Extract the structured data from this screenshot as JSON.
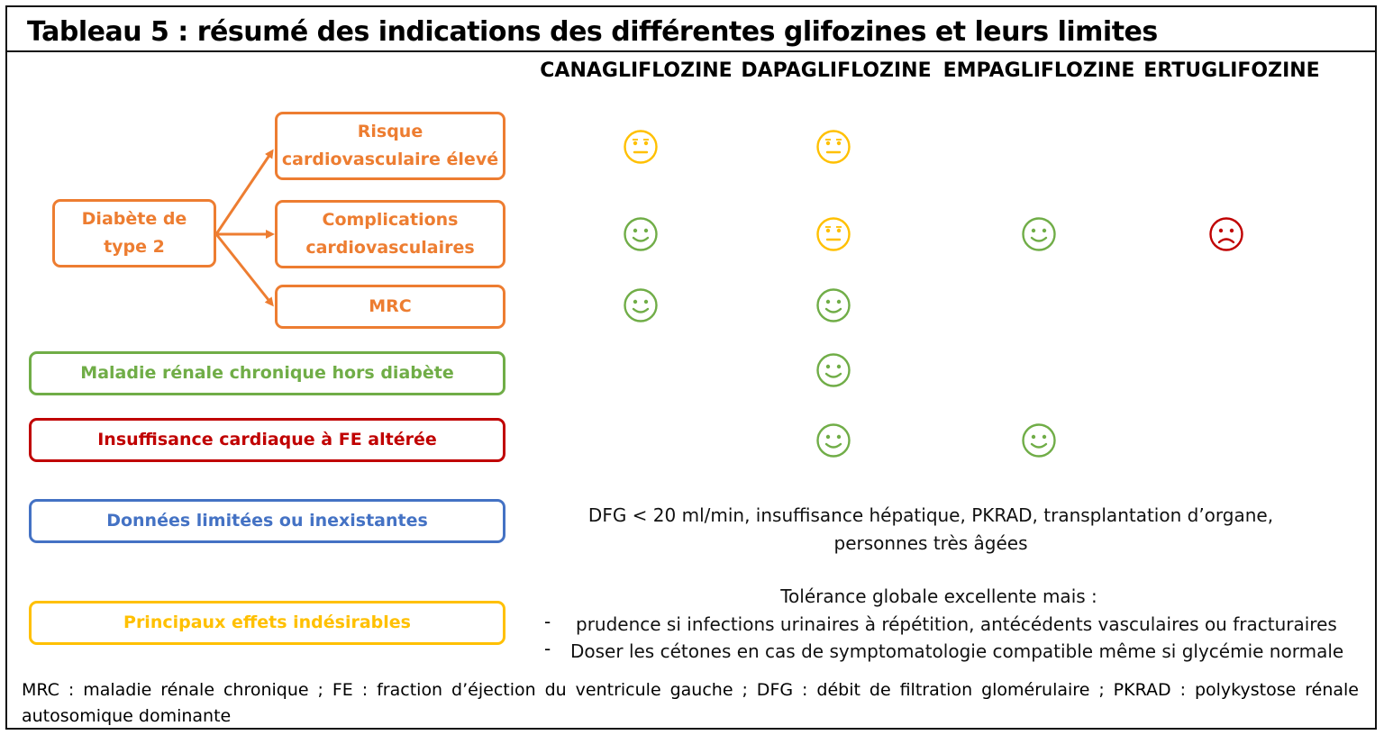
{
  "title": "Tableau 5 : résumé des indications des différentes glifozines et leurs limites",
  "columns": [
    "CANAGLIFLOZINE",
    "DAPAGLIFLOZINE",
    "EMPAGLIFLOZINE",
    "ERTUGLIFOZINE"
  ],
  "colors": {
    "orange": "#ED7D31",
    "green": "#70AD47",
    "red": "#C00000",
    "blue": "#4472C4",
    "yellow": "#FFC000"
  },
  "boxes": {
    "diabete": [
      "Diabète de",
      "type 2"
    ],
    "risque": [
      "Risque",
      "cardiovasculaire élevé"
    ],
    "complications": [
      "Complications",
      "cardiovasculaires"
    ],
    "mrc": "MRC",
    "maladie_renale": "Maladie rénale chronique hors diabète",
    "insuffisance": "Insuffisance cardiaque à FE altérée",
    "donnees": "Données limitées ou inexistantes",
    "effets": "Principaux effets indésirables"
  },
  "rows": [
    {
      "name": "risque-cv",
      "cells": [
        "neutral",
        "neutral",
        "",
        ""
      ]
    },
    {
      "name": "complications-cv",
      "cells": [
        "happy",
        "neutral",
        "happy",
        "sad"
      ]
    },
    {
      "name": "mrc",
      "cells": [
        "happy",
        "happy",
        "",
        ""
      ]
    },
    {
      "name": "maladie-renale",
      "cells": [
        "",
        "happy",
        "",
        ""
      ]
    },
    {
      "name": "insuffisance-cardiaque",
      "cells": [
        "",
        "happy",
        "happy",
        ""
      ]
    }
  ],
  "donnees_text": [
    "DFG < 20 ml/min, insuffisance hépatique, PKRAD, transplantation d’organe,",
    "personnes très âgées"
  ],
  "effets_text": {
    "intro": "Tolérance globale excellente mais :",
    "bullets": [
      "prudence si infections urinaires à répétition, antécédents vasculaires ou fracturaires",
      "Doser les cétones en cas de symptomatologie compatible même si glycémie normale"
    ],
    "bullet_marker": "-"
  },
  "footer": [
    "MRC : maladie rénale chronique ; FE : fraction d’éjection du ventricule gauche ; DFG : débit de filtration glomérulaire ; PKRAD : polykystose rénale",
    "autosomique dominante"
  ]
}
